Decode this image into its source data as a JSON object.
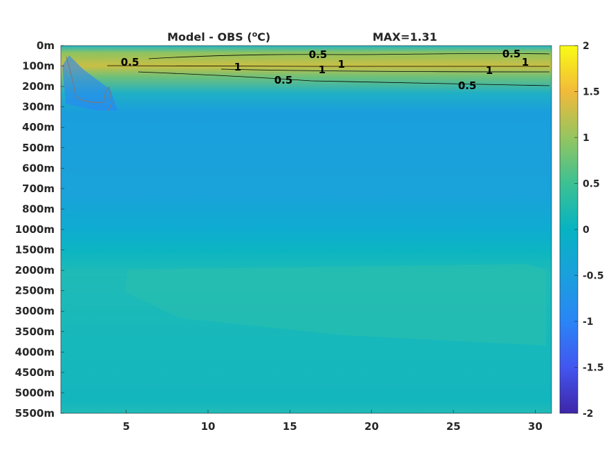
{
  "chart_data": {
    "type": "heatmap",
    "title": "Model - OBS (",
    "title_super": "o",
    "title_unit": "C)",
    "max_label": "MAX=1.31",
    "x_ticks": [
      "5",
      "10",
      "15",
      "20",
      "25",
      "30"
    ],
    "x_tick_values": [
      5,
      10,
      15,
      20,
      25,
      30
    ],
    "xlim": [
      1,
      31
    ],
    "y_ticks": [
      "0m",
      "100m",
      "200m",
      "300m",
      "400m",
      "500m",
      "600m",
      "700m",
      "800m",
      "1000m",
      "1500m",
      "2000m",
      "2500m",
      "3000m",
      "3500m",
      "4000m",
      "4500m",
      "5000m",
      "5500m"
    ],
    "colorbar_ticks": [
      "2",
      "1.5",
      "1",
      "0.5",
      "0",
      "-0.5",
      "-1",
      "-1.5",
      "-2"
    ],
    "colorbar_values": [
      2,
      1.5,
      1,
      0.5,
      0,
      -0.5,
      -1,
      -1.5,
      -2
    ],
    "clim": [
      -2,
      2
    ],
    "colormap": "parula",
    "contour_labels": [
      "0.5",
      "0.5",
      "0.5",
      "0.5",
      "0.5",
      "1",
      "1",
      "1",
      "1",
      "1"
    ],
    "field_estimate": {
      "depth_levels": [
        "0m",
        "100m",
        "200m",
        "300m",
        "400m",
        "500m",
        "600m",
        "700m",
        "800m",
        "1000m",
        "1500m",
        "2000m",
        "2500m",
        "3000m",
        "3500m",
        "4000m",
        "4500m",
        "5000m",
        "5500m"
      ],
      "typical_values": [
        0.2,
        1.1,
        0.5,
        -0.3,
        -0.45,
        -0.45,
        -0.35,
        -0.3,
        -0.25,
        -0.15,
        0.05,
        0.15,
        0.15,
        0.1,
        0.1,
        0.05,
        0.05,
        0.05,
        0.15
      ]
    },
    "grid": false
  }
}
